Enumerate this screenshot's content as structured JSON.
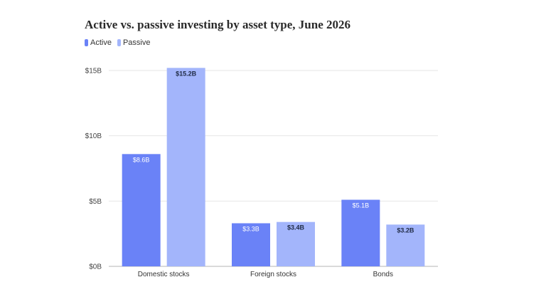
{
  "title": "Active vs. passive investing by asset type, June 2026",
  "colors": {
    "active": "#6a82f7",
    "passive": "#a3b5fb"
  },
  "chart_data": {
    "type": "bar",
    "categories": [
      "Domestic stocks",
      "Foreign stocks",
      "Bonds"
    ],
    "series": [
      {
        "name": "Active",
        "values": [
          8.6,
          3.3,
          5.1
        ],
        "labels": [
          "$8.6B",
          "$3.3B",
          "$5.1B"
        ]
      },
      {
        "name": "Passive",
        "values": [
          15.2,
          3.4,
          3.2
        ],
        "labels": [
          "$15.2B",
          "$3.4B",
          "$3.2B"
        ]
      }
    ],
    "ylim": [
      0,
      15
    ],
    "yticks": [
      0,
      5,
      10,
      15
    ],
    "ytick_labels": [
      "$0B",
      "$5B",
      "$10B",
      "$15B"
    ],
    "grid": true,
    "legend": "top-left"
  }
}
